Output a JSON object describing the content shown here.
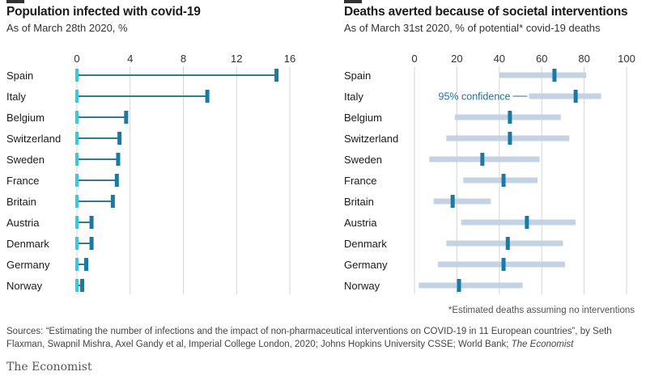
{
  "chart_data": [
    {
      "type": "bar",
      "title": "Population infected with covid-19",
      "subtitle": "As of March 28th 2020, %",
      "xlim": [
        0,
        16
      ],
      "xticks": [
        0,
        4,
        8,
        12,
        16
      ],
      "categories": [
        "Spain",
        "Italy",
        "Belgium",
        "Switzerland",
        "Sweden",
        "France",
        "Britain",
        "Austria",
        "Denmark",
        "Germany",
        "Norway"
      ],
      "values": [
        15.0,
        9.8,
        3.7,
        3.2,
        3.1,
        3.0,
        2.7,
        1.1,
        1.1,
        0.7,
        0.4
      ],
      "grid": true
    },
    {
      "type": "errorbar",
      "title": "Deaths averted because of societal interventions",
      "subtitle": "As of March 31st 2020, % of potential* covid-19 deaths",
      "xlim": [
        0,
        100
      ],
      "xticks": [
        0,
        20,
        40,
        60,
        80,
        100
      ],
      "categories": [
        "Spain",
        "Italy",
        "Belgium",
        "Switzerland",
        "Sweden",
        "France",
        "Britain",
        "Austria",
        "Denmark",
        "Germany",
        "Norway"
      ],
      "estimate": [
        66,
        76,
        45,
        45,
        32,
        42,
        18,
        53,
        44,
        42,
        21
      ],
      "low": [
        40,
        54,
        19,
        15,
        7,
        23,
        9,
        22,
        15,
        11,
        2
      ],
      "high": [
        81,
        88,
        69,
        73,
        59,
        58,
        36,
        76,
        70,
        71,
        51
      ],
      "annotation": "95% confidence",
      "grid": true
    }
  ],
  "footnote": "*Estimated deaths assuming no interventions",
  "sources": "Sources: “Estimating the number of infections and the impact of non-pharmaceutical interventions on COVID-19 in 11 European countries”, by Seth Flaxman, Swapnil Mishra, Axel Gandy et al, Imperial College London, 2020; Johns Hopkins University CSSE; World Bank; ",
  "sources_italic": "The Economist",
  "brand": "The Economist",
  "colors": {
    "bar": "#2f7a96",
    "marker": "#1a7aa7",
    "start_cap": "#3ec6e0",
    "ci": "#c3d3e3",
    "grid": "#d6d6d6"
  }
}
